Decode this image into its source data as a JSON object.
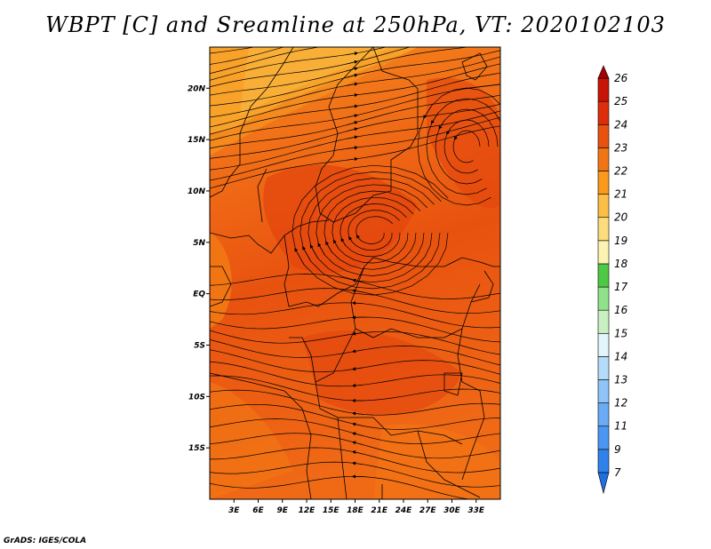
{
  "title": "WBPT [C] and Sreamline at 250hPa, VT: 2020102103",
  "footer": "GrADS: IGES/COLA",
  "map": {
    "lon_range": [
      0,
      36
    ],
    "lat_range": [
      -20,
      24
    ],
    "x_ticks": [
      "3E",
      "6E",
      "9E",
      "12E",
      "15E",
      "18E",
      "21E",
      "24E",
      "27E",
      "30E",
      "33E"
    ],
    "y_ticks": [
      "20N",
      "15N",
      "10N",
      "5N",
      "EQ",
      "5S",
      "10S",
      "15S"
    ],
    "fill_colors": {
      "low": "#e8520f",
      "mid": "#f06a16",
      "high": "#f58a1e",
      "band": "#f9b13a"
    }
  },
  "colorbar": {
    "labels": [
      "7",
      "9",
      "11",
      "12",
      "13",
      "14",
      "15",
      "16",
      "17",
      "18",
      "19",
      "20",
      "21",
      "22",
      "23",
      "24",
      "25",
      "26"
    ],
    "colors": [
      "#1e6fe0",
      "#2f82ec",
      "#4b96f2",
      "#6aabf5",
      "#8ec4f7",
      "#b4dbfa",
      "#e1f5fb",
      "#c8f0c0",
      "#8fe28a",
      "#4dc943",
      "#fdf3b0",
      "#fcdc7c",
      "#fbbe46",
      "#f99a1c",
      "#f27514",
      "#e8520f",
      "#dd2d0a",
      "#c81406",
      "#a80000"
    ]
  }
}
